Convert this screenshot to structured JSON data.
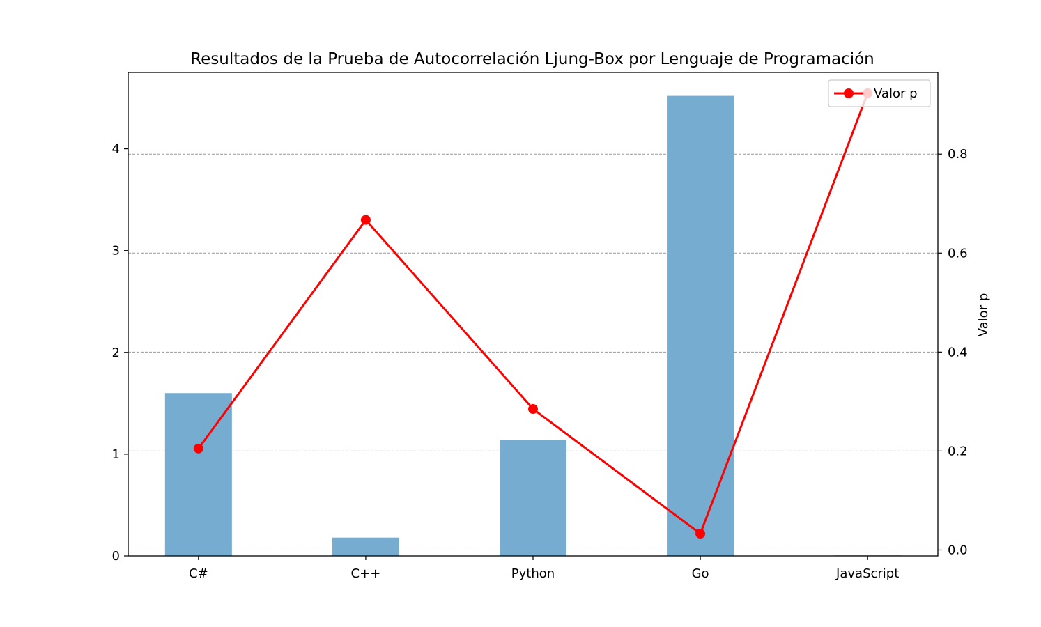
{
  "chart_data": {
    "type": "bar",
    "title": "Resultados de la Prueba de Autocorrelación Ljung-Box por Lenguaje de Programación",
    "xlabel": "",
    "ylabel_left": "",
    "ylabel_right": "Valor p",
    "categories": [
      "C#",
      "C++",
      "Python",
      "Go",
      "JavaScript"
    ],
    "bars": {
      "values": [
        1.6,
        0.18,
        1.14,
        4.52,
        0.005
      ],
      "color": "#76acd0"
    },
    "line": {
      "name": "Valor p",
      "values": [
        0.205,
        0.667,
        0.285,
        0.033,
        0.923
      ],
      "color": "#ff0000"
    },
    "ylim_left": [
      0,
      4.75
    ],
    "ylim_right": [
      -0.012,
      0.965
    ],
    "yticks_left": [
      "0",
      "1",
      "2",
      "3",
      "4"
    ],
    "yticks_right": [
      "0.0",
      "0.2",
      "0.4",
      "0.6",
      "0.8"
    ],
    "grid": true,
    "grid_axis": "right",
    "legend_position": "top-right"
  }
}
